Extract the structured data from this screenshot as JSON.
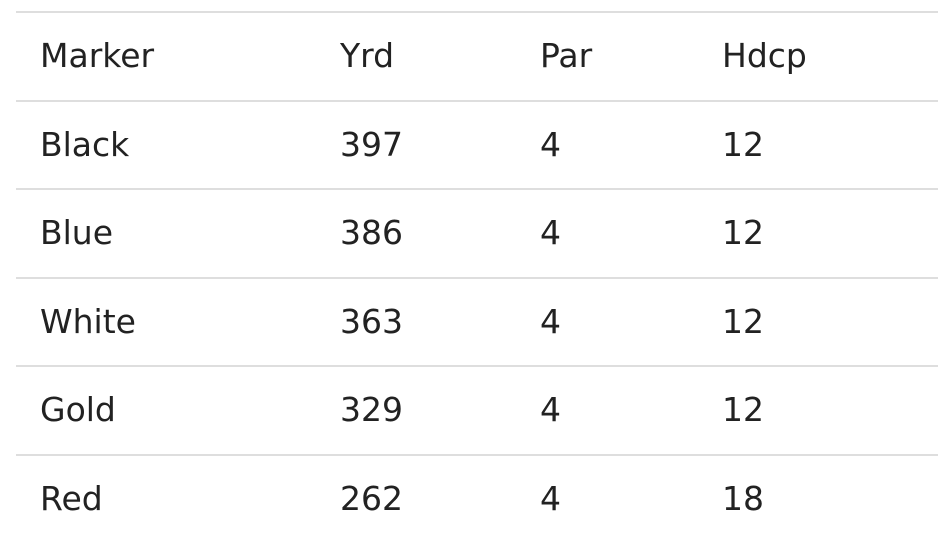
{
  "table": {
    "header": [
      "Marker",
      "Yrd",
      "Par",
      "Hdcp"
    ],
    "rows": [
      [
        "Black",
        397,
        4,
        12
      ],
      [
        "Blue",
        386,
        4,
        12
      ],
      [
        "White",
        363,
        4,
        12
      ],
      [
        "Gold",
        329,
        4,
        12
      ],
      [
        "Red",
        262,
        4,
        18
      ]
    ]
  }
}
